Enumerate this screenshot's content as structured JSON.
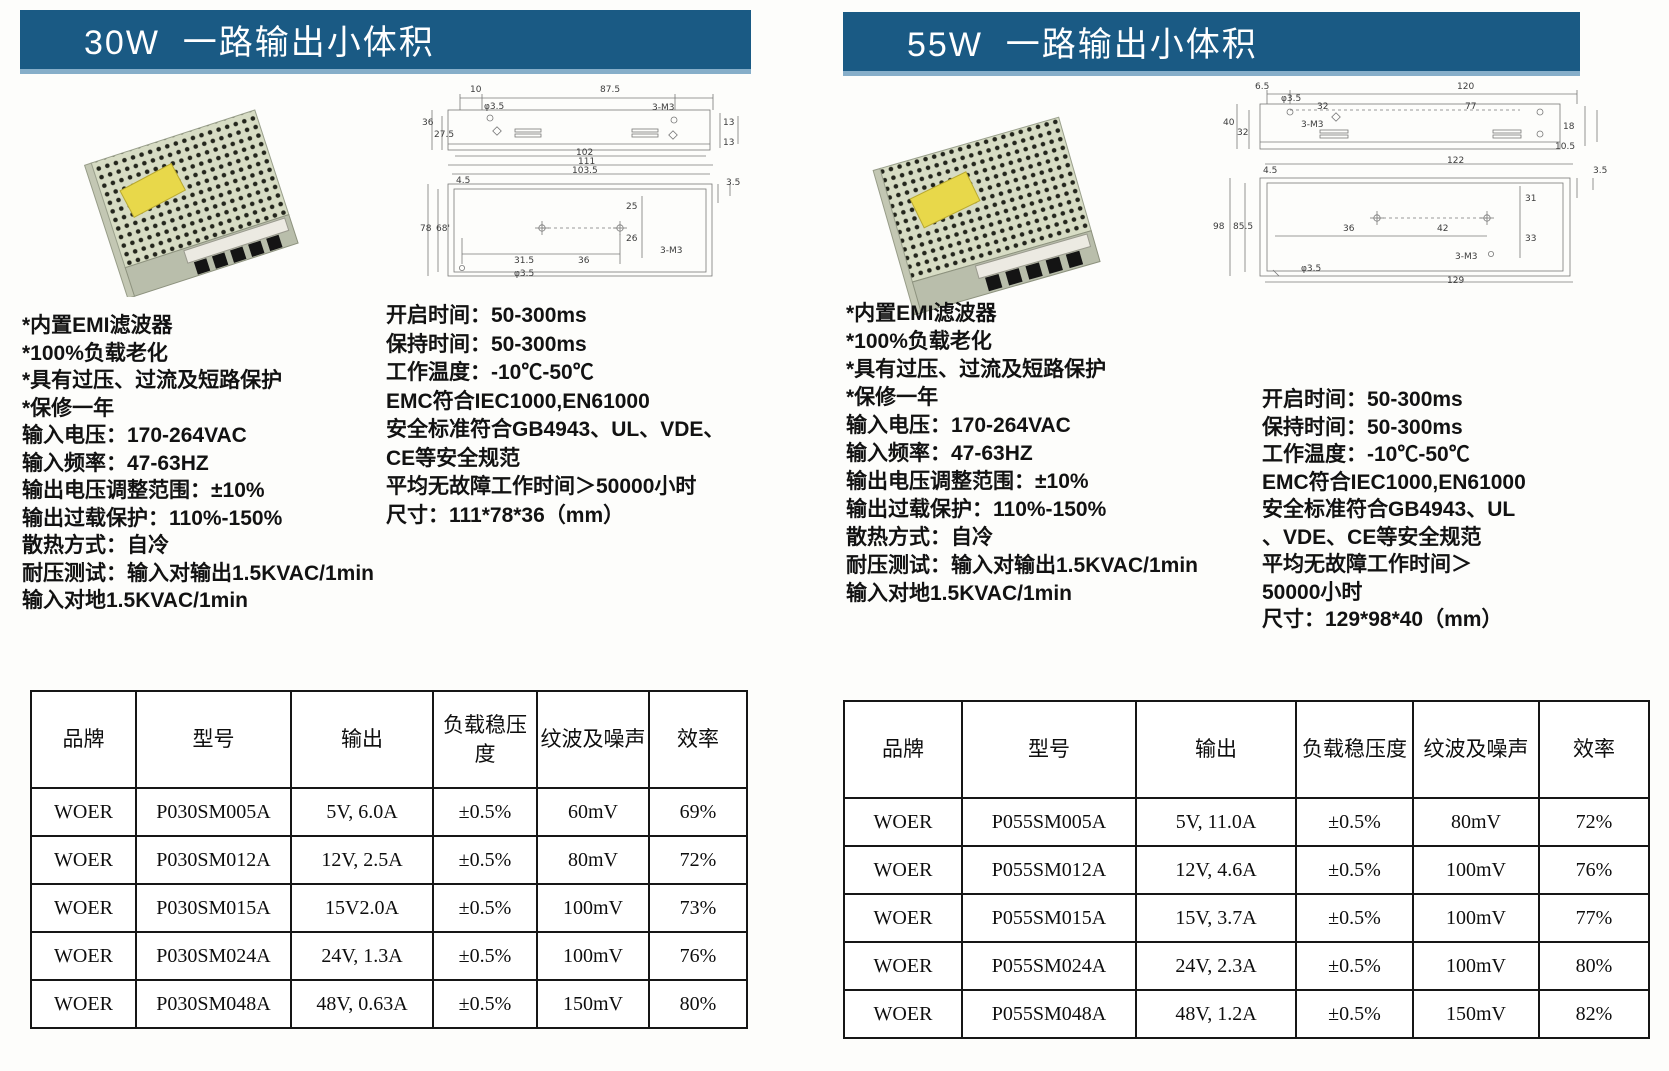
{
  "colors": {
    "banner_blue": "#1a5a84",
    "banner_edge_light_blue": "#86aec9",
    "table_border": "#161616",
    "label_yellow": "#e8d84a"
  },
  "sections": [
    {
      "banner": "30W  一路输出小体积",
      "features_left": [
        "*内置EMI滤波器",
        "*100%负载老化",
        "*具有过压、过流及短路保护",
        "*保修一年",
        "输入电压：170-264VAC",
        "输入频率：47-63HZ",
        "输出电压调整范围：±10%",
        "输出过载保护：110%-150%",
        "散热方式：自冷",
        "耐压测试：输入对输出1.5KVAC/1min",
        "输入对地1.5KVAC/1min"
      ],
      "features_right": [
        "开启时间：50-300ms",
        "保持时间：50-300ms",
        "工作温度：-10℃-50℃",
        "EMC符合IEC1000,EN61000",
        "安全标准符合GB4943、UL、VDE、",
        "CE等安全规范",
        "平均无故障工作时间＞50000小时",
        "尺寸：111*78*36（mm）"
      ],
      "drawing_labels": [
        "10",
        "87.5",
        "φ3.5",
        "3-M3",
        "36",
        "27.5",
        "13",
        "13",
        "102",
        "111",
        "103.5",
        "4.5",
        "3.5",
        "78",
        "68'",
        "25",
        "26",
        "31.5",
        "36",
        "3-M3",
        "φ3.5"
      ],
      "table": {
        "headers": [
          "品牌",
          "型号",
          "输出",
          "负载稳压度",
          "纹波及噪声",
          "效率"
        ],
        "rows": [
          [
            "WOER",
            "P030SM005A",
            "5V, 6.0A",
            "±0.5%",
            "60mV",
            "69%"
          ],
          [
            "WOER",
            "P030SM012A",
            "12V, 2.5A",
            "±0.5%",
            "80mV",
            "72%"
          ],
          [
            "WOER",
            "P030SM015A",
            "15V2.0A",
            "±0.5%",
            "100mV",
            "73%"
          ],
          [
            "WOER",
            "P030SM024A",
            "24V, 1.3A",
            "±0.5%",
            "100mV",
            "76%"
          ],
          [
            "WOER",
            "P030SM048A",
            "48V, 0.63A",
            "±0.5%",
            "150mV",
            "80%"
          ]
        ]
      }
    },
    {
      "banner": "55W  一路输出小体积",
      "features_left": [
        "*内置EMI滤波器",
        "*100%负载老化",
        "*具有过压、过流及短路保护",
        "*保修一年",
        "输入电压：170-264VAC",
        "输入频率：47-63HZ",
        "输出电压调整范围：±10%",
        "输出过载保护：110%-150%",
        "散热方式：自冷",
        "耐压测试：输入对输出1.5KVAC/1min",
        "输入对地1.5KVAC/1min"
      ],
      "features_right": [
        "开启时间：50-300ms",
        "保持时间：50-300ms",
        "工作温度：-10℃-50℃",
        "EMC符合IEC1000,EN61000",
        "安全标准符合GB4943、UL",
        "、VDE、CE等安全规范",
        "平均无故障工作时间＞",
        "50000小时",
        "尺寸：129*98*40（mm）"
      ],
      "drawing_labels": [
        "6.5",
        "φ3.5",
        "120",
        "32",
        "77",
        "3-M3",
        "18",
        "10.5",
        "40",
        "32",
        "122",
        "4.5",
        "3.5",
        "98",
        "85.5",
        "31",
        "36",
        "42",
        "33",
        "3-M3",
        "φ3.5",
        "129"
      ],
      "table": {
        "headers": [
          "品牌",
          "型号",
          "输出",
          "负载稳压度",
          "纹波及噪声",
          "效率"
        ],
        "rows": [
          [
            "WOER",
            "P055SM005A",
            "5V, 11.0A",
            "±0.5%",
            "80mV",
            "72%"
          ],
          [
            "WOER",
            "P055SM012A",
            "12V, 4.6A",
            "±0.5%",
            "100mV",
            "76%"
          ],
          [
            "WOER",
            "P055SM015A",
            "15V, 3.7A",
            "±0.5%",
            "100mV",
            "77%"
          ],
          [
            "WOER",
            "P055SM024A",
            "24V, 2.3A",
            "±0.5%",
            "100mV",
            "80%"
          ],
          [
            "WOER",
            "P055SM048A",
            "48V, 1.2A",
            "±0.5%",
            "150mV",
            "82%"
          ]
        ]
      }
    }
  ]
}
